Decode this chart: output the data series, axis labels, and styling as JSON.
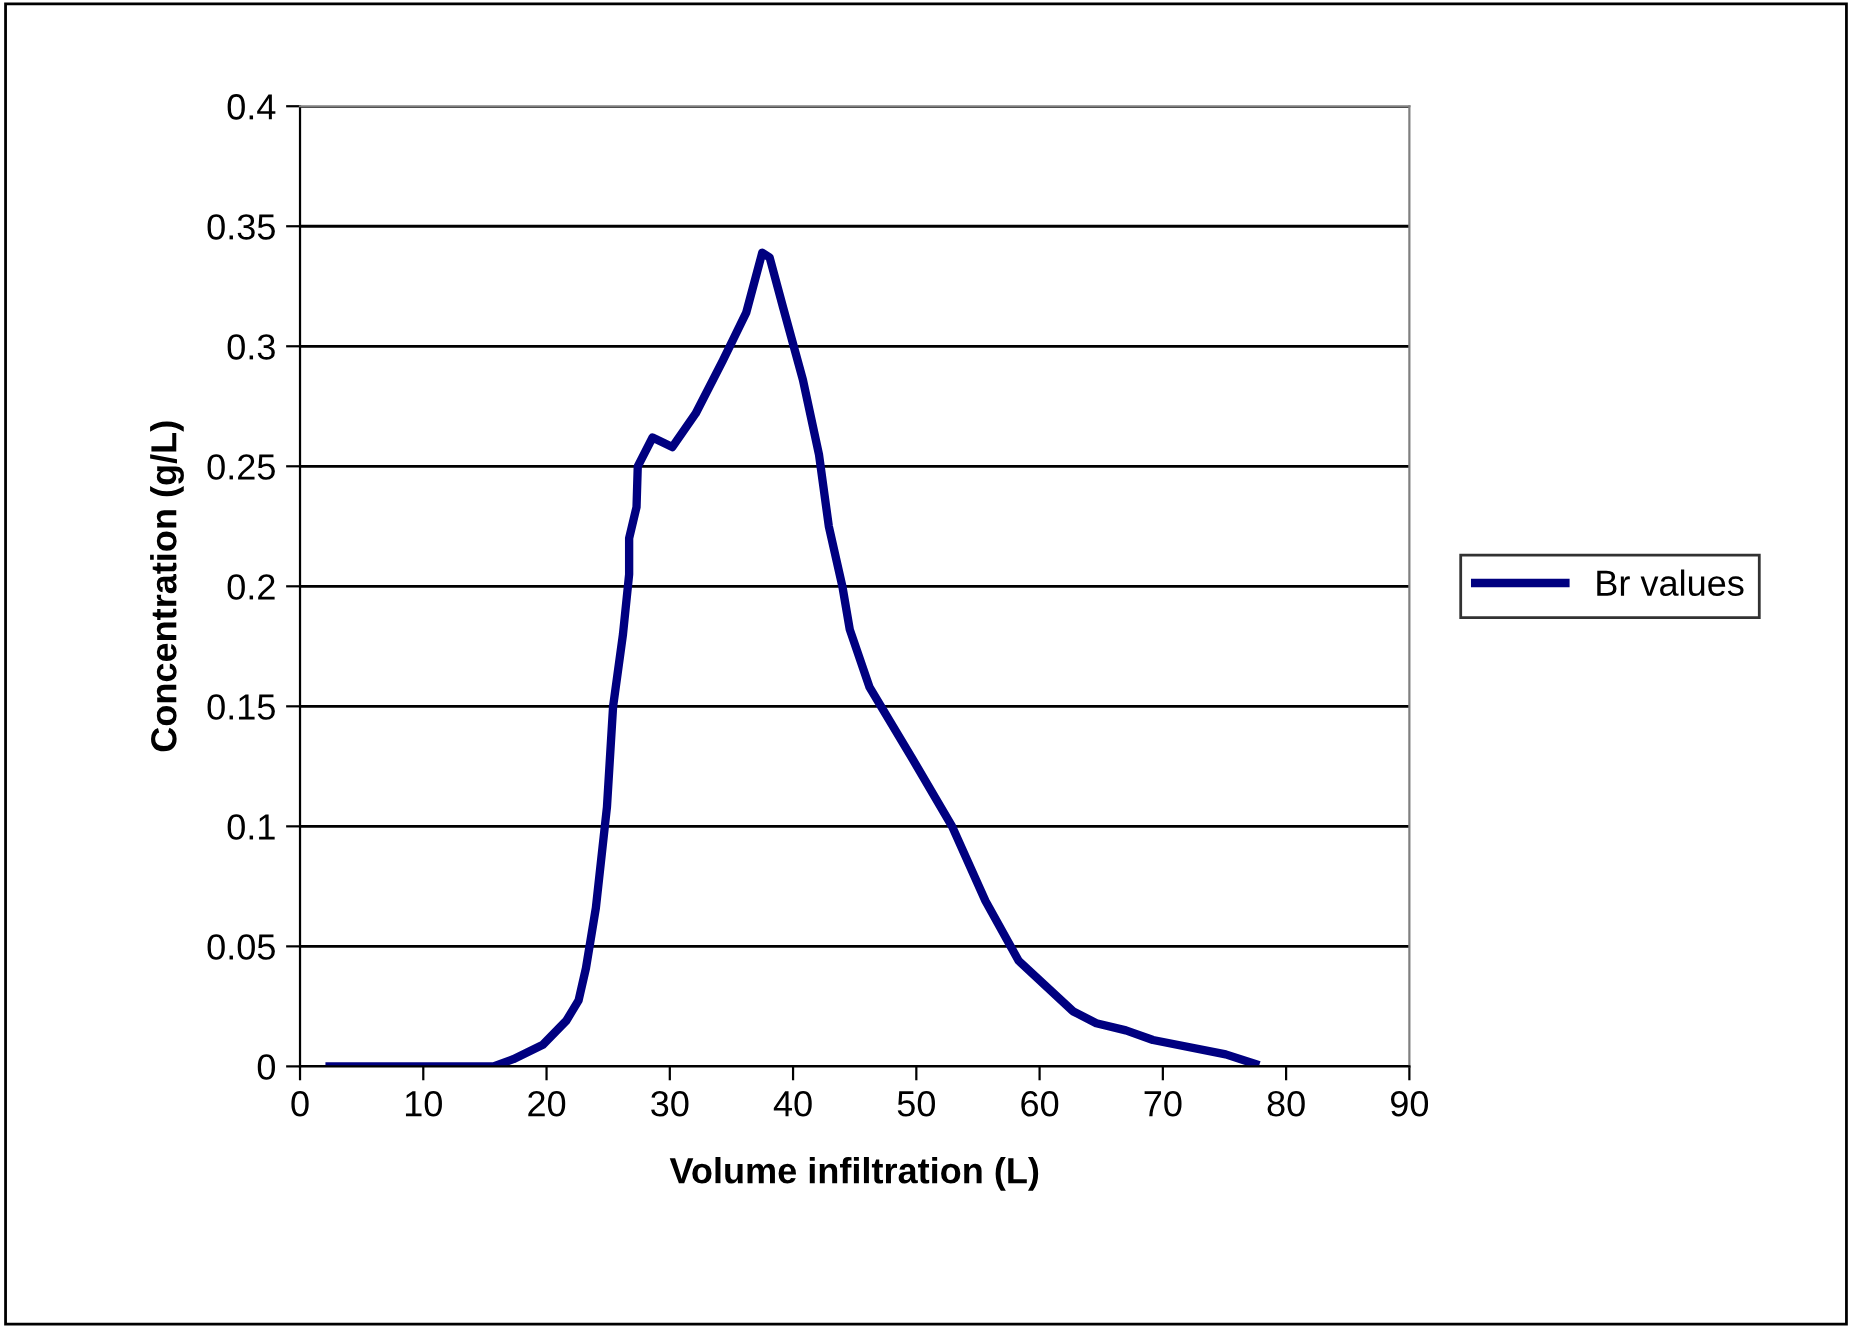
{
  "chart_data": {
    "type": "line",
    "xlabel": "Volume infiltration (L)",
    "ylabel": "Concentration (g/L)",
    "xlim": [
      0,
      90
    ],
    "xticks": [
      0,
      10,
      20,
      30,
      40,
      50,
      60,
      70,
      80,
      90
    ],
    "ylim": [
      0,
      0.4
    ],
    "yticks": [
      0,
      0.05,
      0.1,
      0.15,
      0.2,
      0.25,
      0.3,
      0.35,
      0.4
    ],
    "grid": "y",
    "legend": "right",
    "marker": "none",
    "line_style": "solid",
    "series": [
      {
        "name": "Br values",
        "color": "#000080",
        "x": [
          2.4,
          11.3,
          13,
          15.7,
          17.3,
          19.7,
          21.6,
          22.6,
          23.2,
          24.0,
          24.9,
          25.4,
          26.2,
          26.7,
          26.7,
          27.3,
          27.4,
          28.6,
          30.2,
          32.1,
          34.3,
          36.2,
          37.5,
          38.1,
          39.2,
          40.8,
          42.1,
          42.9,
          44.0,
          44.6,
          46.2,
          49.7,
          52.9,
          55.6,
          58.3,
          62.7,
          64.6,
          67,
          69.2,
          75.1,
          77.5
        ],
        "values": [
          0,
          0,
          0,
          0,
          0.003,
          0.009,
          0.019,
          0.0275,
          0.041,
          0.066,
          0.108,
          0.15,
          0.18,
          0.205,
          0.22,
          0.233,
          0.25,
          0.262,
          0.258,
          0.272,
          0.294,
          0.314,
          0.339,
          0.337,
          0.316,
          0.286,
          0.255,
          0.225,
          0.2,
          0.182,
          0.158,
          0.128,
          0.1,
          0.069,
          0.044,
          0.023,
          0.018,
          0.015,
          0.011,
          0.005,
          0.001
        ]
      }
    ]
  }
}
